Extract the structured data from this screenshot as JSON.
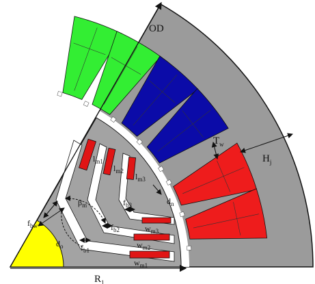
{
  "colors": {
    "background": "#ffffff",
    "stator_core": "#9b9b9b",
    "rotor_core": "#a3a3a3",
    "shaft": "#ffff00",
    "phase_green": "#33ee33",
    "phase_blue": "#0b0ba8",
    "phase_red": "#ee1c1c",
    "magnet": "#e01515",
    "barrier": "#ffffff",
    "outline": "#111111"
  },
  "labels": {
    "od": "OD",
    "r1": {
      "main": "R",
      "sub": "1"
    },
    "hj": {
      "main": "H",
      "sub": "j"
    },
    "tw": {
      "main": "T",
      "sub": "w"
    },
    "dn": {
      "main": "d",
      "sub": "n"
    },
    "lm1": {
      "main": "l",
      "sub": "m1"
    },
    "lm2": {
      "main": "l",
      "sub": "m2"
    },
    "lm3": {
      "main": "l",
      "sub": "m3"
    },
    "fb1": {
      "main": "f",
      "sub": "b1"
    },
    "fb2": {
      "main": "f",
      "sub": "b2"
    },
    "fb3": {
      "main": "f",
      "sub": "b3"
    },
    "wm1": {
      "main": "w",
      "sub": "m1"
    },
    "wm2": {
      "main": "w",
      "sub": "m2"
    },
    "wm3": {
      "main": "w",
      "sub": "m3"
    },
    "fbw": {
      "main": "f",
      "sub": "bw"
    },
    "bm": {
      "main": "β",
      "sub": "m"
    },
    "d0": {
      "main": "d",
      "sub": "o"
    }
  },
  "icons": [
    "shaft-sector",
    "stator-slot",
    "magnet-bar",
    "flux-barrier",
    "dimension-arrow"
  ]
}
